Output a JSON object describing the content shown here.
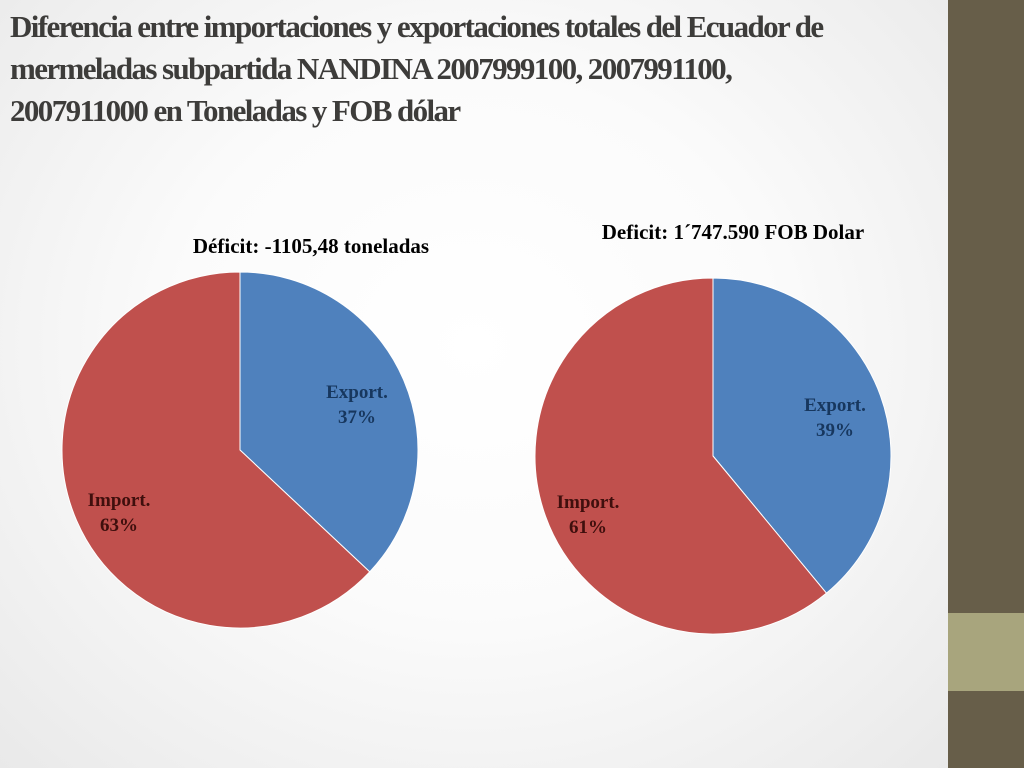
{
  "slide": {
    "title_lines": [
      "Diferencia entre importaciones y exportaciones totales del Ecuador de",
      "mermeladas subpartida NANDINA 2007999100, 2007991100,",
      "2007911000 en Toneladas y FOB dólar"
    ]
  },
  "colors": {
    "export": "#4f81bd",
    "import": "#c0504d",
    "export_label": "#17375e",
    "import_label": "#3f0f0d",
    "sidebar": "#675e49",
    "sidebar_accent": "#a8a57d"
  },
  "chart_data": [
    {
      "type": "pie",
      "title": "Déficit: -1105,48 toneladas",
      "start_angle": "12 o'clock",
      "direction": "clockwise",
      "slices": [
        {
          "label": "Export.",
          "percent_label": "37%",
          "value": 37,
          "color": "#4f81bd"
        },
        {
          "label": "Import.",
          "percent_label": "63%",
          "value": 63,
          "color": "#c0504d"
        }
      ]
    },
    {
      "type": "pie",
      "title": "Deficit: 1´747.590 FOB Dolar",
      "start_angle": "12 o'clock",
      "direction": "clockwise",
      "slices": [
        {
          "label": "Export.",
          "percent_label": "39%",
          "value": 39,
          "color": "#4f81bd"
        },
        {
          "label": "Import.",
          "percent_label": "61%",
          "value": 61,
          "color": "#c0504d"
        }
      ]
    }
  ]
}
